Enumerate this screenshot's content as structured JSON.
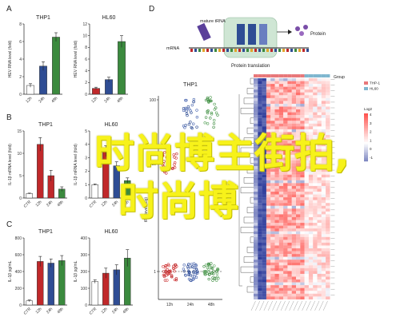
{
  "panels": {
    "a": "A",
    "b": "B",
    "c": "C",
    "d": "D"
  },
  "colors": {
    "white": "#ffffff",
    "red": "#c0282a",
    "blue": "#2f4d94",
    "green": "#3b8a3e",
    "hm_red": "#c62127",
    "hm_blue": "#2a3d9a",
    "thp1": "#e8787a",
    "hl60": "#7fb6cf"
  },
  "chart_data": [
    {
      "id": "a1",
      "type": "bar",
      "title": "THP1",
      "ylabel": "HEV RNA level (fold)",
      "categories": [
        "12h",
        "24h",
        "48h"
      ],
      "values": [
        1,
        3.2,
        6.5
      ],
      "errors": [
        0.2,
        0.5,
        0.5
      ],
      "ylim": [
        0,
        8
      ],
      "yticks": [
        0,
        2,
        4,
        6,
        8
      ]
    },
    {
      "id": "a2",
      "type": "bar",
      "title": "HL60",
      "ylabel": "HEV RNA level (fold)",
      "categories": [
        "12h",
        "24h",
        "48h"
      ],
      "values": [
        1,
        2.5,
        9
      ],
      "errors": [
        0.2,
        0.4,
        1.0
      ],
      "ylim": [
        0,
        12
      ],
      "yticks": [
        0,
        2,
        4,
        6,
        8,
        10,
        12
      ]
    },
    {
      "id": "b1",
      "type": "bar",
      "title": "THP1",
      "ylabel": "IL-1β mRNA level (fold)",
      "categories": [
        "CTR",
        "12h",
        "24h",
        "48h"
      ],
      "values": [
        1,
        12,
        5,
        2
      ],
      "errors": [
        0.1,
        1.5,
        1.2,
        0.5
      ],
      "ylim": [
        0,
        15
      ],
      "yticks": [
        0,
        5,
        10,
        15
      ]
    },
    {
      "id": "b2",
      "type": "bar",
      "title": "HL60",
      "ylabel": "IL-1β mRNA level (fold)",
      "categories": [
        "CTR",
        "12h",
        "24h",
        "48h"
      ],
      "values": [
        1,
        3.5,
        2.4,
        1.3
      ],
      "errors": [
        0.05,
        0.4,
        0.3,
        0.2
      ],
      "ylim": [
        0,
        5
      ],
      "yticks": [
        0,
        1,
        2,
        3,
        4,
        5
      ]
    },
    {
      "id": "c1",
      "type": "bar",
      "title": "THP1",
      "ylabel": "IL-1β pg/mL",
      "categories": [
        "CTR",
        "12h",
        "24h",
        "48h"
      ],
      "values": [
        50,
        520,
        500,
        530
      ],
      "errors": [
        10,
        60,
        50,
        60
      ],
      "ylim": [
        0,
        800
      ],
      "yticks": [
        0,
        200,
        400,
        600,
        800
      ]
    },
    {
      "id": "c2",
      "type": "bar",
      "title": "HL60",
      "ylabel": "IL-1β pg/mL",
      "categories": [
        "CTR",
        "12h",
        "24h",
        "48h"
      ],
      "values": [
        140,
        190,
        210,
        280
      ],
      "errors": [
        10,
        30,
        30,
        50
      ],
      "ylim": [
        0,
        400
      ],
      "yticks": [
        0,
        100,
        200,
        300,
        400
      ]
    },
    {
      "id": "d_scatter",
      "type": "scatter",
      "title": "THP1",
      "ylabel": "tRF level (log)",
      "categories": [
        "12h",
        "24h",
        "48h"
      ],
      "ytick_labels": [
        "1",
        "10",
        "100"
      ]
    },
    {
      "id": "d_heatmap",
      "type": "heatmap",
      "legend_title": "Group",
      "legend_items": [
        "THP-1",
        "HL60"
      ],
      "scale_title": "Log2",
      "scale_ticks": [
        "4",
        "3",
        "2",
        "1",
        "0",
        "-1"
      ]
    }
  ],
  "diagram": {
    "mature_trna": "mature tRNA",
    "mrna": "mRNA",
    "protein": "Protein",
    "protein_translation": "Protein translation"
  },
  "watermark": {
    "line1": "时尚博主街拍,",
    "line2": "时尚博"
  }
}
